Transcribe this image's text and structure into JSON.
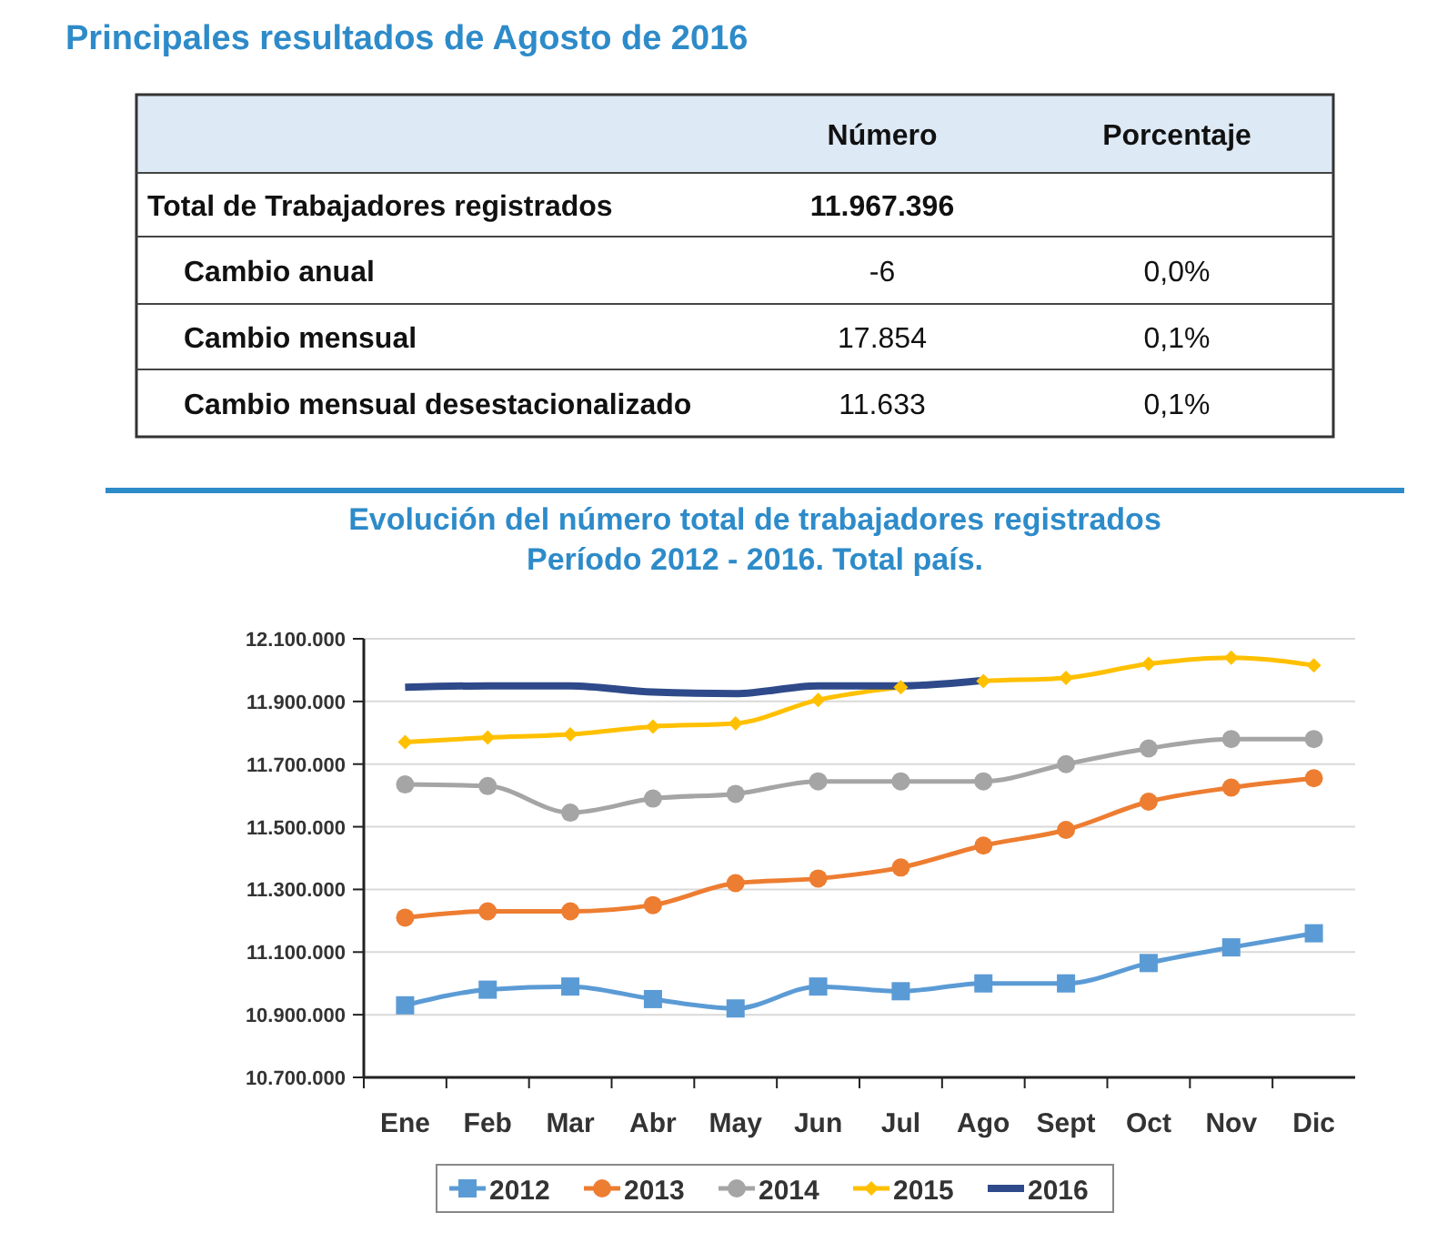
{
  "chart_data": [
    {
      "type": "other",
      "title": "Principales resultados de Agosto de 2016",
      "annotations": [
        "Número",
        "Porcentaje",
        "Total de Trabajadores registrados",
        "11.967.396",
        "Cambio anual",
        "-6",
        "0,0%",
        "Cambio mensual",
        "17.854",
        "0,1%",
        "Cambio mensual desestacionalizado",
        "11.633",
        "0,1%"
      ]
    },
    {
      "type": "line",
      "title": "Evolución del número total de trabajadores registrados",
      "subtitle": "Período 2012 - 2016. Total país.",
      "categories": [
        "Ene",
        "Feb",
        "Mar",
        "Abr",
        "May",
        "Jun",
        "Jul",
        "Ago",
        "Sept",
        "Oct",
        "Nov",
        "Dic"
      ],
      "ylim": [
        10700000,
        12100000
      ],
      "yticks": [
        {
          "value": 10700000,
          "label": "10.700.000"
        },
        {
          "value": 10900000,
          "label": "10.900.000"
        },
        {
          "value": 11100000,
          "label": "11.100.000"
        },
        {
          "value": 11300000,
          "label": "11.300.000"
        },
        {
          "value": 11500000,
          "label": "11.500.000"
        },
        {
          "value": 11700000,
          "label": "11.700.000"
        },
        {
          "value": 11900000,
          "label": "11.900.000"
        },
        {
          "value": 12100000,
          "label": "12.100.000"
        }
      ],
      "grid": "y",
      "legend": "bottom",
      "series": [
        {
          "name": "2012",
          "color": "#5b9bd5",
          "marker": "square",
          "values": [
            10930000,
            10980000,
            10990000,
            10950000,
            10920000,
            10990000,
            10975000,
            11000000,
            11000000,
            11065000,
            11115000,
            11160000
          ]
        },
        {
          "name": "2013",
          "color": "#ed7d31",
          "marker": "circle",
          "values": [
            11210000,
            11230000,
            11230000,
            11250000,
            11320000,
            11335000,
            11370000,
            11440000,
            11490000,
            11580000,
            11625000,
            11655000
          ]
        },
        {
          "name": "2014",
          "color": "#a5a5a5",
          "marker": "circle",
          "values": [
            11635000,
            11630000,
            11545000,
            11590000,
            11605000,
            11645000,
            11645000,
            11645000,
            11700000,
            11750000,
            11780000,
            11780000
          ]
        },
        {
          "name": "2015",
          "color": "#ffc000",
          "marker": "diamond",
          "values": [
            11770000,
            11785000,
            11795000,
            11820000,
            11830000,
            11905000,
            11945000,
            11965000,
            11975000,
            12020000,
            12040000,
            12015000
          ]
        },
        {
          "name": "2016",
          "color": "#2f4a8a",
          "marker": "none",
          "values": [
            11945000,
            11950000,
            11950000,
            11930000,
            11925000,
            11950000,
            11950000,
            11967000,
            null,
            null,
            null,
            null
          ]
        }
      ]
    }
  ]
}
